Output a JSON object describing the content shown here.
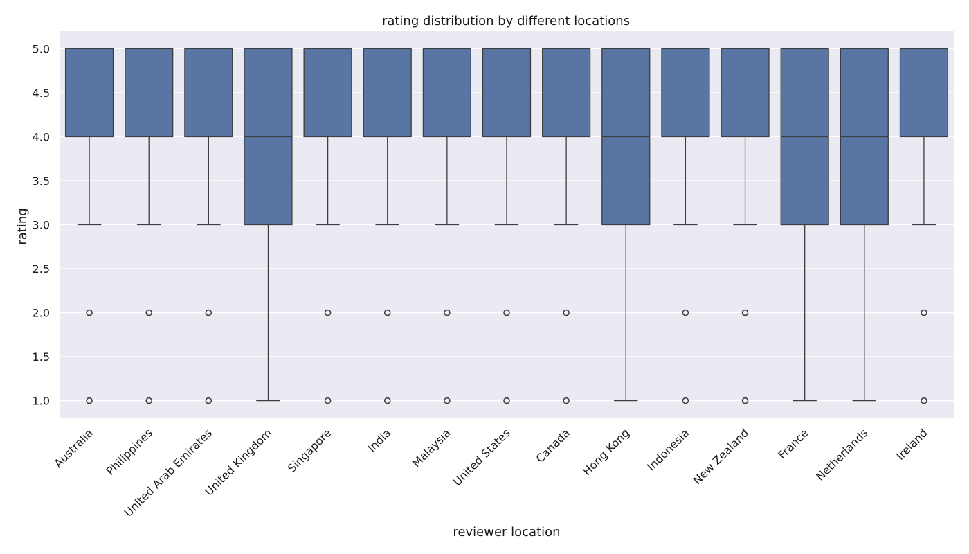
{
  "chart_data": {
    "type": "box",
    "title": "rating distribution by different locations",
    "xlabel": "reviewer location",
    "ylabel": "rating",
    "ylim": [
      0.8,
      5.2
    ],
    "yticks": [
      1.0,
      1.5,
      2.0,
      2.5,
      3.0,
      3.5,
      4.0,
      4.5,
      5.0
    ],
    "grid": true,
    "style": {
      "background": "#eaeaf2",
      "grid_color": "#ffffff",
      "box_fill": "#5875a4",
      "line_color": "#3d3d3d"
    },
    "categories": [
      "Australia",
      "Philippines",
      "United Arab Emirates",
      "United Kingdom",
      "Singapore",
      "India",
      "Malaysia",
      "United States",
      "Canada",
      "Hong Kong",
      "Indonesia",
      "New Zealand",
      "France",
      "Netherlands",
      "Ireland"
    ],
    "boxes": [
      {
        "q1": 4,
        "median": 5,
        "q3": 5,
        "whisker_low": 3,
        "whisker_high": 5,
        "outliers": [
          2,
          1
        ]
      },
      {
        "q1": 4,
        "median": 5,
        "q3": 5,
        "whisker_low": 3,
        "whisker_high": 5,
        "outliers": [
          2,
          1
        ]
      },
      {
        "q1": 4,
        "median": 5,
        "q3": 5,
        "whisker_low": 3,
        "whisker_high": 5,
        "outliers": [
          2,
          1
        ]
      },
      {
        "q1": 3,
        "median": 4,
        "q3": 5,
        "whisker_low": 1,
        "whisker_high": 5,
        "outliers": []
      },
      {
        "q1": 4,
        "median": 5,
        "q3": 5,
        "whisker_low": 3,
        "whisker_high": 5,
        "outliers": [
          2,
          1
        ]
      },
      {
        "q1": 4,
        "median": 5,
        "q3": 5,
        "whisker_low": 3,
        "whisker_high": 5,
        "outliers": [
          2,
          1
        ]
      },
      {
        "q1": 4,
        "median": 5,
        "q3": 5,
        "whisker_low": 3,
        "whisker_high": 5,
        "outliers": [
          2,
          1
        ]
      },
      {
        "q1": 4,
        "median": 5,
        "q3": 5,
        "whisker_low": 3,
        "whisker_high": 5,
        "outliers": [
          2,
          1
        ]
      },
      {
        "q1": 4,
        "median": 5,
        "q3": 5,
        "whisker_low": 3,
        "whisker_high": 5,
        "outliers": [
          2,
          1
        ]
      },
      {
        "q1": 3,
        "median": 4,
        "q3": 5,
        "whisker_low": 1,
        "whisker_high": 5,
        "outliers": []
      },
      {
        "q1": 4,
        "median": 5,
        "q3": 5,
        "whisker_low": 3,
        "whisker_high": 5,
        "outliers": [
          2,
          1
        ]
      },
      {
        "q1": 4,
        "median": 5,
        "q3": 5,
        "whisker_low": 3,
        "whisker_high": 5,
        "outliers": [
          2,
          1
        ]
      },
      {
        "q1": 3,
        "median": 4,
        "q3": 5,
        "whisker_low": 1,
        "whisker_high": 5,
        "outliers": []
      },
      {
        "q1": 3,
        "median": 4,
        "q3": 5,
        "whisker_low": 1,
        "whisker_high": 5,
        "outliers": []
      },
      {
        "q1": 4,
        "median": 5,
        "q3": 5,
        "whisker_low": 3,
        "whisker_high": 5,
        "outliers": [
          2,
          1
        ]
      }
    ]
  }
}
